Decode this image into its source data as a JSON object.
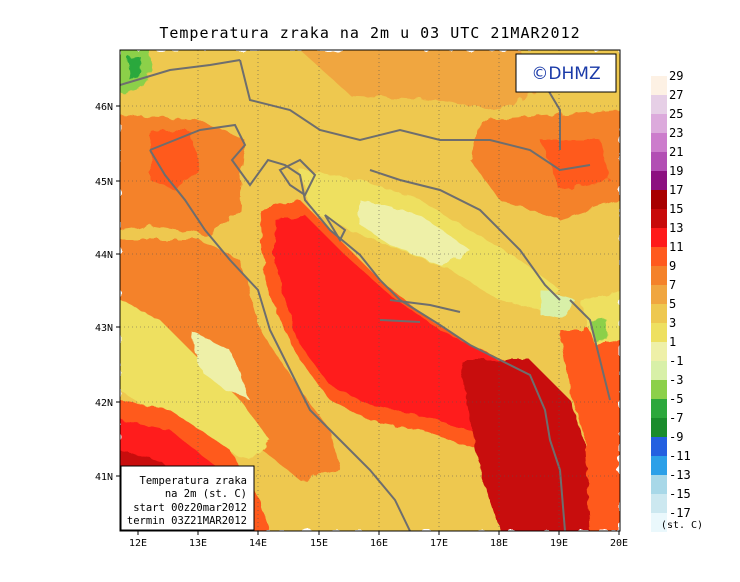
{
  "title": "Temperatura zraka na 2m u 03 UTC 21MAR2012",
  "brand": "©DHMZ",
  "legend_box": {
    "line1": "Temperatura zraka",
    "line2": "na 2m (st. C)",
    "line3": "start 00z20mar2012",
    "line4": "termin 03Z21MAR2012"
  },
  "axes": {
    "x_ticks": [
      "12E",
      "13E",
      "14E",
      "15E",
      "16E",
      "17E",
      "18E",
      "19E",
      "20E"
    ],
    "y_ticks": [
      "46N",
      "45N",
      "44N",
      "43N",
      "42N",
      "41N"
    ]
  },
  "colorbar": {
    "unit": "(st. C)",
    "labels": [
      "29",
      "27",
      "25",
      "23",
      "21",
      "19",
      "17",
      "15",
      "13",
      "11",
      "9",
      "7",
      "5",
      "3",
      "1",
      "-1",
      "-3",
      "-5",
      "-7",
      "-9",
      "-11",
      "-13",
      "-15",
      "-17"
    ],
    "colors": [
      "#fdf1e4",
      "#e6cfe6",
      "#dcaadc",
      "#cc7ccc",
      "#b24eb4",
      "#8c1080",
      "#a80000",
      "#c80a0a",
      "#ff1a1a",
      "#ff5a1e",
      "#f4822a",
      "#f0a640",
      "#eec850",
      "#eee060",
      "#eef0a8",
      "#d8f0a8",
      "#8cd04a",
      "#2ca83c",
      "#1a8c2c",
      "#2460e0",
      "#2ca0e8",
      "#a8d8e8",
      "#cce8f0",
      "#eaf8fc"
    ]
  }
}
